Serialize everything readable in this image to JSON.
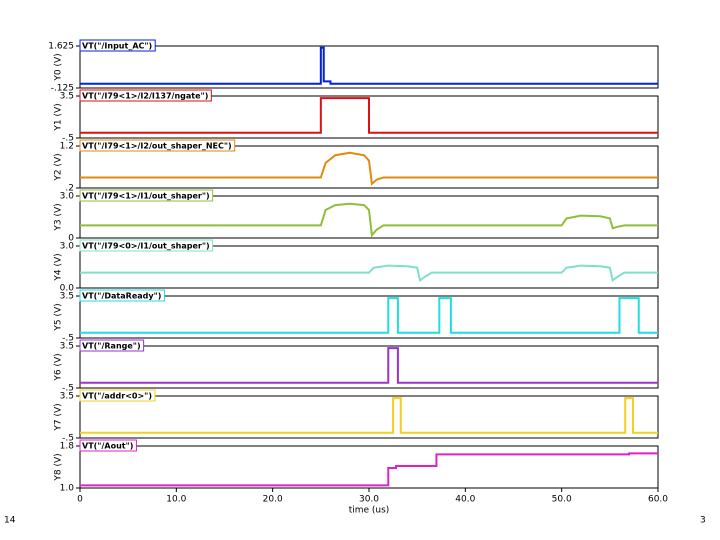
{
  "chart_data": [
    {
      "type": "line",
      "title": "VT(\"/Input_AC\")",
      "ylabel": "Y0 (V)",
      "color": "#0022dd",
      "xlim": [
        0,
        60
      ],
      "ylim": [
        -0.125,
        1.625
      ],
      "yticks": [
        {
          "value": -0.125,
          "label": "-.125"
        },
        1.625
      ],
      "x": [
        0,
        25,
        25,
        25.3,
        25.3,
        26,
        26,
        60
      ],
      "values": [
        0.05,
        0.05,
        1.55,
        1.55,
        0.15,
        0.15,
        0.05,
        0.05
      ]
    },
    {
      "type": "line",
      "title": "VT(\"/I79<1>/I2/I137/ngate\")",
      "ylabel": "Y1 (V)",
      "color": "#dd1111",
      "xlim": [
        0,
        60
      ],
      "ylim": [
        -0.5,
        3.5
      ],
      "yticks": [
        {
          "value": -0.5,
          "label": "-.5"
        },
        3.5
      ],
      "x": [
        0,
        25,
        25,
        30,
        30,
        60
      ],
      "values": [
        0,
        0,
        3.3,
        3.3,
        0,
        0
      ]
    },
    {
      "type": "line",
      "title": "VT(\"/I79<1>/I2/out_shaper_NEC\")",
      "ylabel": "Y2 (V)",
      "color": "#e08a10",
      "xlim": [
        0,
        60
      ],
      "ylim": [
        0.2,
        1.2
      ],
      "yticks": [
        {
          "value": 0.2,
          "label": ".2"
        },
        1.2
      ],
      "x": [
        0,
        25,
        25.5,
        26.5,
        28,
        29.5,
        30,
        30.3,
        30.8,
        31.5,
        60
      ],
      "values": [
        0.45,
        0.45,
        0.8,
        0.98,
        1.04,
        0.98,
        0.85,
        0.3,
        0.4,
        0.45,
        0.45
      ]
    },
    {
      "type": "line",
      "title": "VT(\"/I79<1>/I1/out_shaper\")",
      "ylabel": "Y3 (V)",
      "color": "#8fbf3a",
      "xlim": [
        0,
        60
      ],
      "ylim": [
        0,
        3.0
      ],
      "yticks": [
        0,
        {
          "value": 3,
          "label": "3.0"
        }
      ],
      "x": [
        0,
        25,
        25.5,
        26.5,
        28,
        29.5,
        30,
        30.3,
        30.8,
        31.5,
        50,
        50.5,
        52,
        54,
        55,
        55.3,
        55.8,
        56.5,
        60
      ],
      "values": [
        0.9,
        0.9,
        2.0,
        2.35,
        2.45,
        2.35,
        2.0,
        0.2,
        0.6,
        0.9,
        0.9,
        1.4,
        1.6,
        1.55,
        1.4,
        0.7,
        0.8,
        0.9,
        0.9
      ]
    },
    {
      "type": "line",
      "title": "VT(\"/I79<0>/I1/out_shaper\")",
      "ylabel": "Y4 (V)",
      "color": "#7fe0c8",
      "xlim": [
        0,
        60
      ],
      "ylim": [
        0,
        3.0
      ],
      "yticks": [
        {
          "value": 0,
          "label": "0.0"
        },
        {
          "value": 3,
          "label": "3.0"
        }
      ],
      "x": [
        0,
        30,
        30.5,
        32,
        34,
        35,
        35.3,
        35.8,
        36.5,
        50,
        50.5,
        52,
        54,
        55,
        55.3,
        55.8,
        56.5,
        60
      ],
      "values": [
        1.1,
        1.1,
        1.45,
        1.6,
        1.55,
        1.45,
        0.55,
        0.8,
        1.1,
        1.1,
        1.45,
        1.6,
        1.55,
        1.45,
        0.55,
        0.8,
        1.1,
        1.1
      ]
    },
    {
      "type": "line",
      "title": "VT(\"/DataReady\")",
      "ylabel": "Y5 (V)",
      "color": "#22dddd",
      "xlim": [
        0,
        60
      ],
      "ylim": [
        -0.5,
        3.5
      ],
      "yticks": [
        {
          "value": -0.5,
          "label": "-.5"
        },
        3.5
      ],
      "x": [
        0,
        32,
        32,
        33,
        33,
        37.3,
        37.3,
        38.5,
        38.5,
        56,
        56,
        58,
        58,
        60
      ],
      "values": [
        0,
        0,
        3.3,
        3.3,
        0,
        0,
        3.3,
        3.3,
        0,
        0,
        3.3,
        3.3,
        0,
        0
      ]
    },
    {
      "type": "line",
      "title": "VT(\"/Range\")",
      "ylabel": "Y6 (V)",
      "color": "#9933cc",
      "xlim": [
        0,
        60
      ],
      "ylim": [
        -0.5,
        3.5
      ],
      "yticks": [
        {
          "value": -0.5,
          "label": "-.5"
        },
        3.5
      ],
      "x": [
        0,
        32,
        32,
        33,
        33,
        60
      ],
      "values": [
        0,
        0,
        3.3,
        3.3,
        0,
        0
      ]
    },
    {
      "type": "line",
      "title": "VT(\"/addr<0>\")",
      "ylabel": "Y7 (V)",
      "color": "#f0d020",
      "xlim": [
        0,
        60
      ],
      "ylim": [
        -0.5,
        3.5
      ],
      "yticks": [
        {
          "value": -0.5,
          "label": "-.5"
        },
        3.5
      ],
      "x": [
        0,
        32.5,
        32.5,
        33.3,
        33.3,
        56.6,
        56.6,
        57.4,
        57.4,
        60
      ],
      "values": [
        0,
        0,
        3.3,
        3.3,
        0,
        0,
        3.3,
        3.3,
        0,
        0
      ]
    },
    {
      "type": "line",
      "title": "VT(\"/Aout\")",
      "ylabel": "Y8 (V)",
      "xlabel": "time (us)",
      "color": "#dd22cc",
      "xlim": [
        0,
        60
      ],
      "ylim": [
        1.0,
        1.8
      ],
      "yticks": [
        {
          "value": 1,
          "label": "1.0"
        },
        1.8
      ],
      "xticks": [
        0,
        {
          "value": 10,
          "label": "10.0"
        },
        {
          "value": 20,
          "label": "20.0"
        },
        {
          "value": 30,
          "label": "30.0"
        },
        {
          "value": 40,
          "label": "40.0"
        },
        {
          "value": 50,
          "label": "50.0"
        },
        {
          "value": 60,
          "label": "60.0"
        }
      ],
      "x": [
        0,
        32,
        32,
        32.8,
        32.8,
        37,
        37,
        57,
        57,
        60
      ],
      "values": [
        1.05,
        1.05,
        1.38,
        1.38,
        1.42,
        1.42,
        1.64,
        1.64,
        1.66,
        1.66
      ]
    }
  ],
  "slide": {
    "number_left": "14",
    "number_right": "3"
  }
}
